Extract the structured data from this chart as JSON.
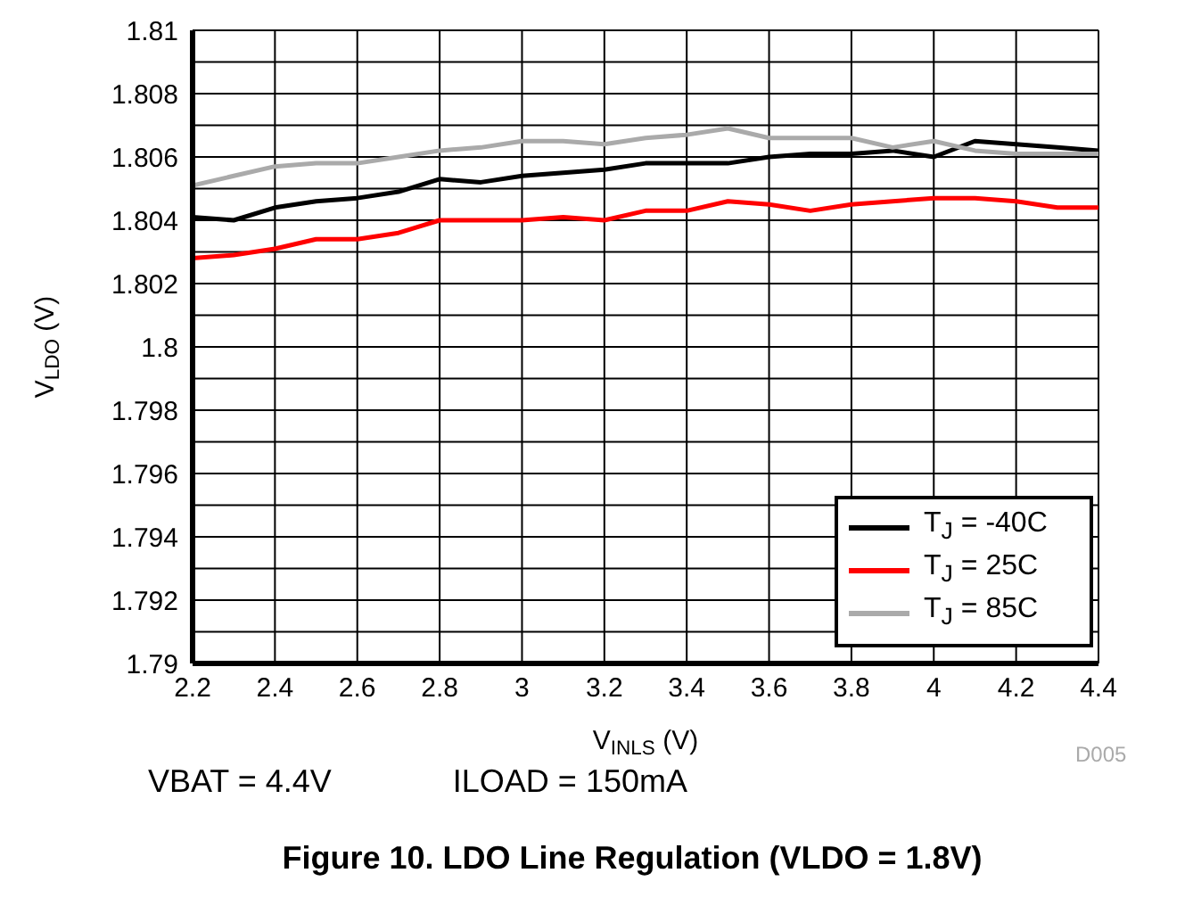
{
  "chart_data": {
    "type": "line",
    "title": "Figure 10. LDO Line Regulation (VLDO = 1.8V)",
    "xlabel": "V$_{INLS}$ (V)",
    "ylabel": "V$_{LDO}$ (V)",
    "annotations": [
      "D005",
      "VBAT = 4.4V",
      "ILOAD = 150mA"
    ],
    "x": [
      2.2,
      2.3,
      2.4,
      2.5,
      2.6,
      2.7,
      2.8,
      2.9,
      3.0,
      3.1,
      3.2,
      3.3,
      3.4,
      3.5,
      3.6,
      3.7,
      3.8,
      3.9,
      4.0,
      4.1,
      4.2,
      4.3,
      4.4
    ],
    "series": [
      {
        "name": "T$_{J}$ = -40C",
        "color": "#000000",
        "values": [
          1.8041,
          1.804,
          1.8044,
          1.8046,
          1.8047,
          1.8049,
          1.8053,
          1.8052,
          1.8054,
          1.8055,
          1.8056,
          1.8058,
          1.8058,
          1.8058,
          1.806,
          1.8061,
          1.8061,
          1.8062,
          1.806,
          1.8065,
          1.8064,
          1.8063,
          1.8062
        ]
      },
      {
        "name": "T$_{J}$ = 25C",
        "color": "#ff0000",
        "values": [
          1.8028,
          1.8029,
          1.8031,
          1.8034,
          1.8034,
          1.8036,
          1.804,
          1.804,
          1.804,
          1.8041,
          1.804,
          1.8043,
          1.8043,
          1.8046,
          1.8045,
          1.8043,
          1.8045,
          1.8046,
          1.8047,
          1.8047,
          1.8046,
          1.8044,
          1.8044
        ]
      },
      {
        "name": "T$_{J}$ = 85C",
        "color": "#aaaaaa",
        "values": [
          1.8051,
          1.8054,
          1.8057,
          1.8058,
          1.8058,
          1.806,
          1.8062,
          1.8063,
          1.8065,
          1.8065,
          1.8064,
          1.8066,
          1.8067,
          1.8069,
          1.8066,
          1.8066,
          1.8066,
          1.8063,
          1.8065,
          1.8062,
          1.8061,
          1.8061,
          1.8061
        ]
      }
    ],
    "xlim": [
      2.2,
      4.4
    ],
    "xticks": [
      2.2,
      2.4,
      2.6,
      2.8,
      3,
      3.2,
      3.4,
      3.6,
      3.8,
      4,
      4.2,
      4.4
    ],
    "ylim": [
      1.79,
      1.81
    ],
    "yticks": [
      1.79,
      {
        "value": 1.791,
        "label": null
      },
      1.792,
      {
        "value": 1.793,
        "label": null
      },
      1.794,
      {
        "value": 1.795,
        "label": null
      },
      1.796,
      {
        "value": 1.797,
        "label": null
      },
      1.798,
      {
        "value": 1.799,
        "label": null
      },
      1.8,
      {
        "value": 1.801,
        "label": null
      },
      1.802,
      {
        "value": 1.803,
        "label": null
      },
      1.804,
      {
        "value": 1.805,
        "label": null
      },
      1.806,
      {
        "value": 1.807,
        "label": null
      },
      1.808,
      {
        "value": 1.809,
        "label": null
      },
      1.81
    ],
    "grid": true,
    "legend": "bottom right",
    "marker": "none",
    "line_style": "solid"
  }
}
